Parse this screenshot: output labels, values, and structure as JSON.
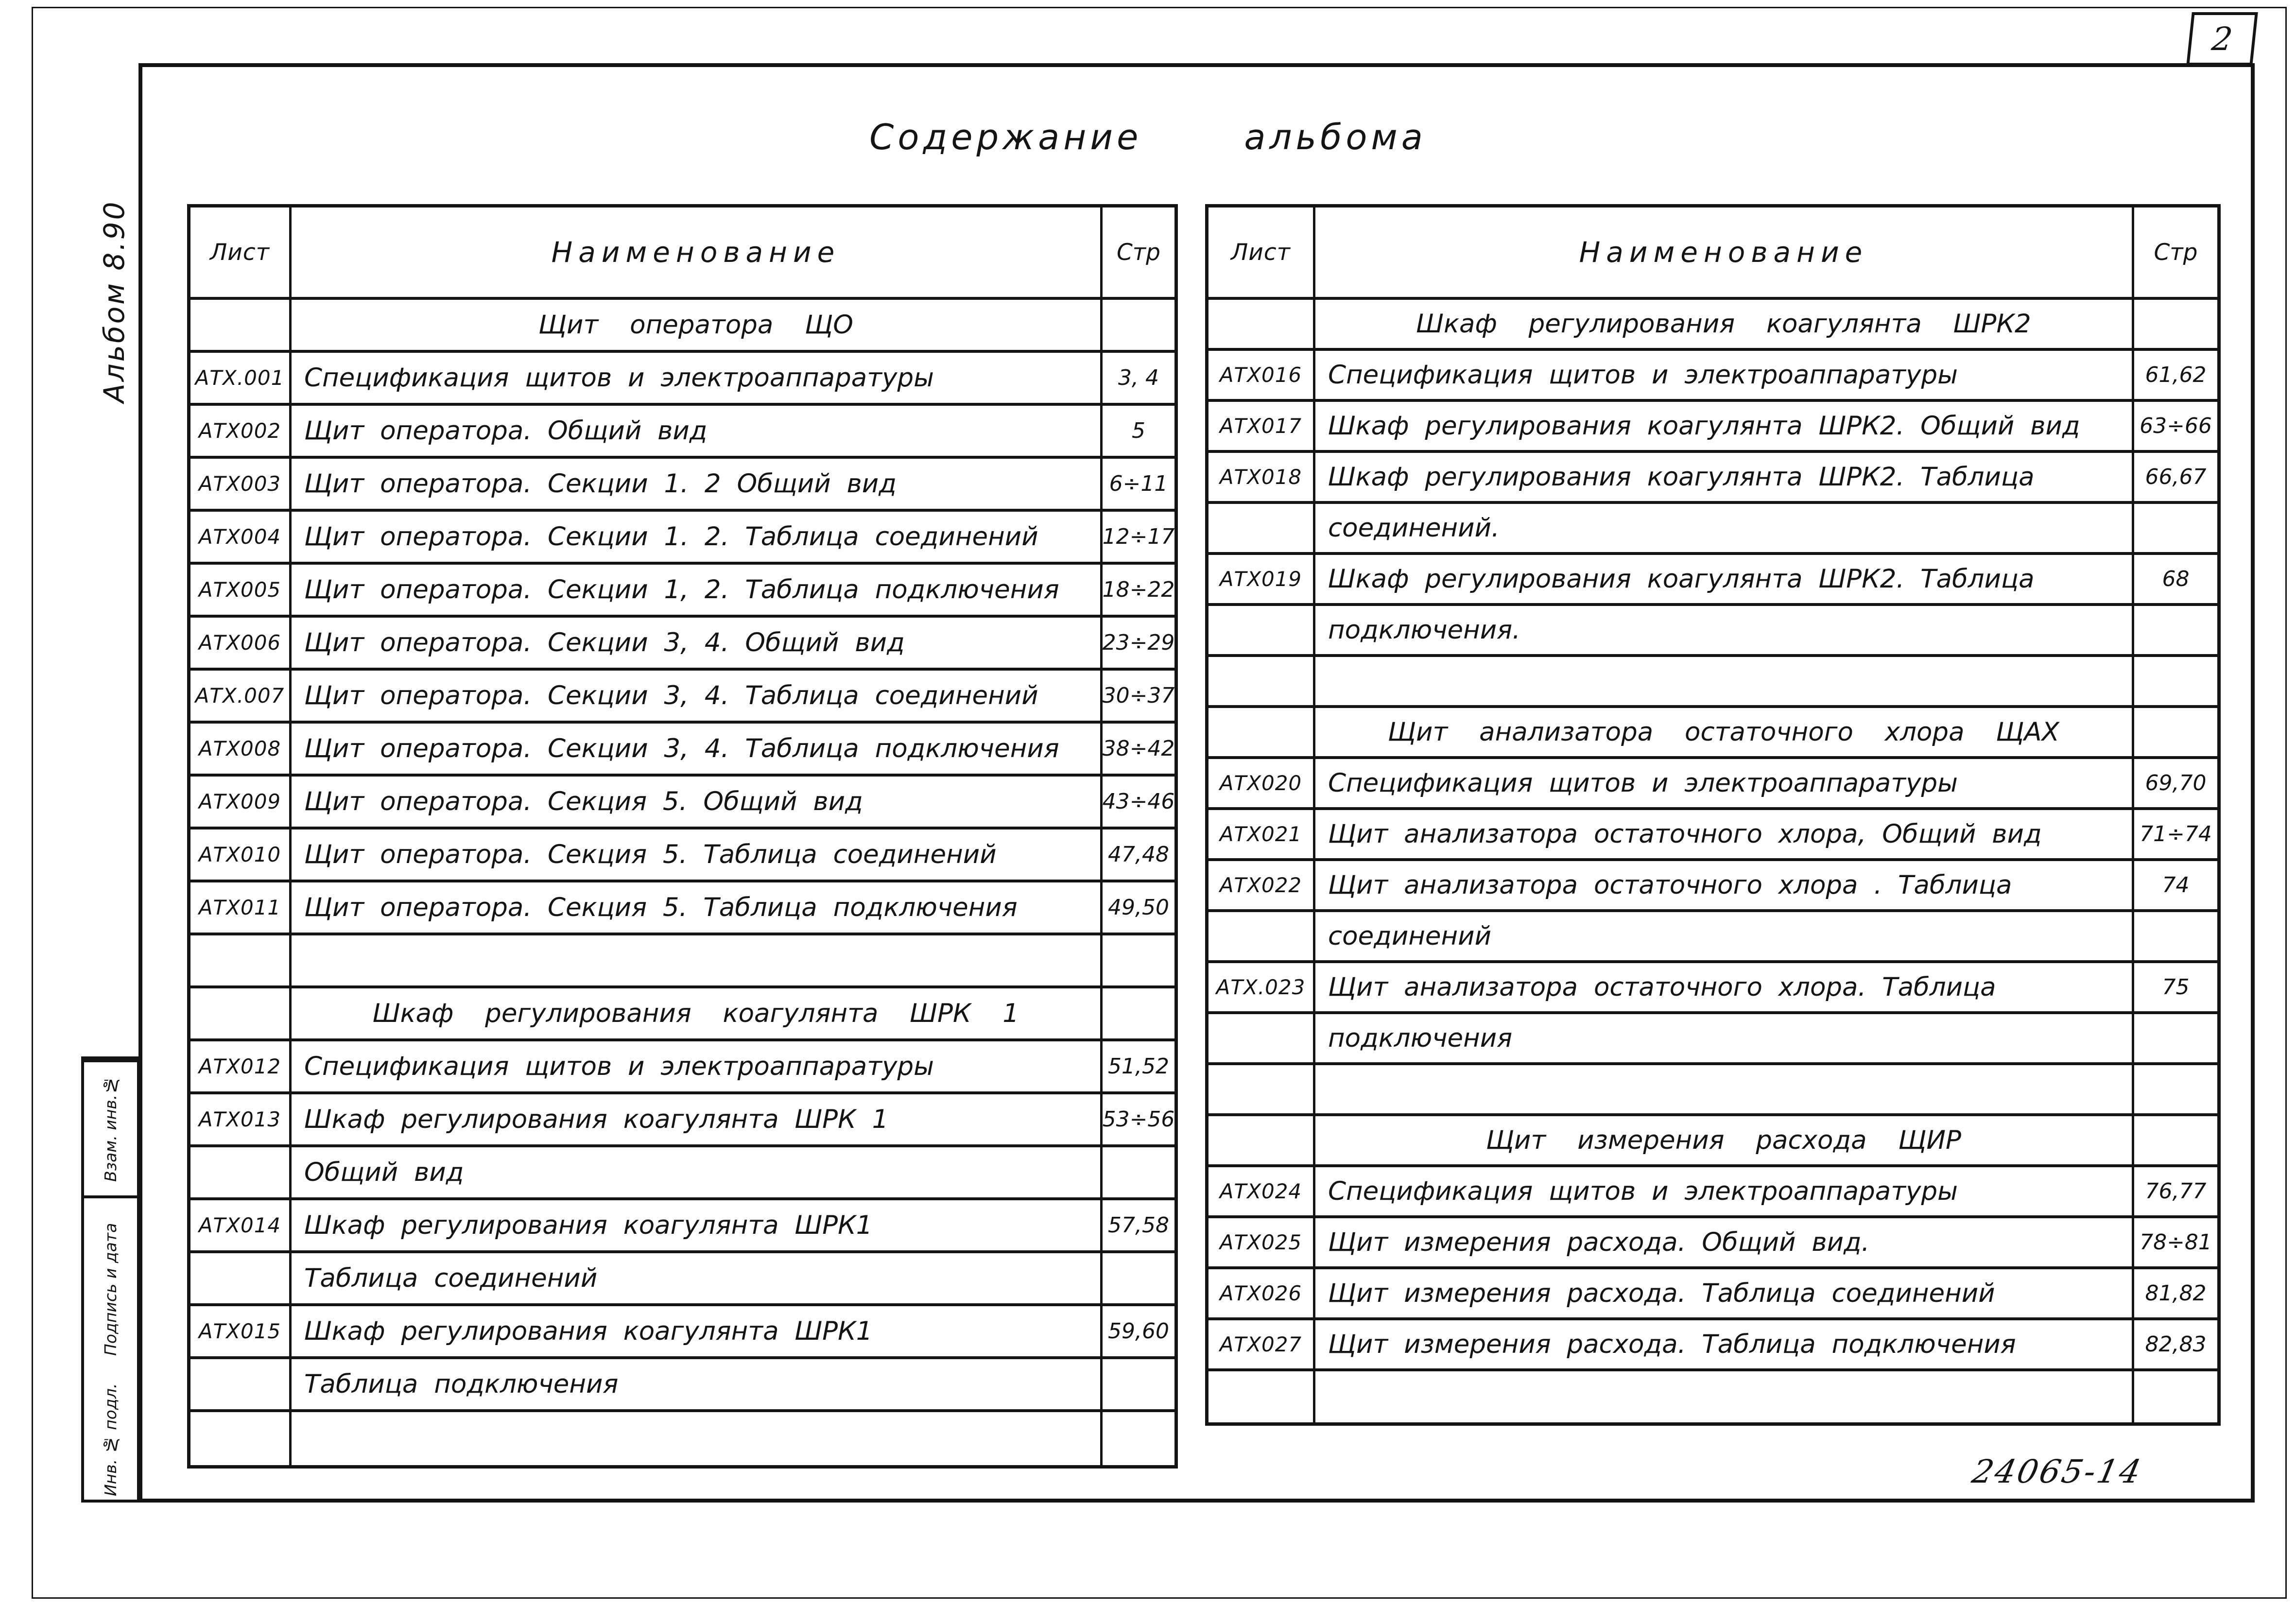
{
  "page": {
    "sheet_number": "2",
    "doc_number": "24065-14",
    "title_word1": "Содержание",
    "title_word2": "альбома",
    "margin_label": "Альбом 8.90",
    "stamp_cells": [
      "Взам. инв.№",
      "Подпись и дата",
      "Инв. № подл."
    ],
    "colors": {
      "paper": "#ffffff",
      "ink": "#141414"
    }
  },
  "tables": {
    "headers": {
      "sheet": "Лист",
      "name": "Наименование",
      "page": "Стр"
    },
    "left_rows": [
      {
        "t": "section",
        "name": "Щит оператора ЩО"
      },
      {
        "t": "item",
        "sheet": "АТХ.001",
        "name": "Спецификация щитов и электроаппаратуры",
        "page": "3, 4"
      },
      {
        "t": "item",
        "sheet": "АТХ002",
        "name": "Щит оператора. Общий вид",
        "page": "5"
      },
      {
        "t": "item",
        "sheet": "АТХ003",
        "name": "Щит оператора. Секции 1. 2  Общий вид",
        "page": "6÷11"
      },
      {
        "t": "item",
        "sheet": "АТХ004",
        "name": "Щит оператора. Секции 1. 2. Таблица соединений",
        "page": "12÷17"
      },
      {
        "t": "item",
        "sheet": "АТХ005",
        "name": "Щит оператора. Секции 1, 2. Таблица подключения",
        "page": "18÷22"
      },
      {
        "t": "item",
        "sheet": "АТХ006",
        "name": "Щит оператора. Секции 3, 4. Общий вид",
        "page": "23÷29"
      },
      {
        "t": "item",
        "sheet": "АТХ.007",
        "name": "Щит оператора. Секции 3, 4. Таблица соединений",
        "page": "30÷37"
      },
      {
        "t": "item",
        "sheet": "АТХ008",
        "name": "Щит оператора. Секции 3, 4. Таблица подключения",
        "page": "38÷42"
      },
      {
        "t": "item",
        "sheet": "АТХ009",
        "name": "Щит оператора. Секция 5. Общий вид",
        "page": "43÷46"
      },
      {
        "t": "item",
        "sheet": "АТХ010",
        "name": "Щит оператора. Секция 5. Таблица соединений",
        "page": "47,48"
      },
      {
        "t": "item",
        "sheet": "АТХ011",
        "name": "Щит оператора. Секция 5. Таблица подключения",
        "page": "49,50"
      },
      {
        "t": "empty"
      },
      {
        "t": "section",
        "name": "Шкаф регулирования коагулянта ШРК 1"
      },
      {
        "t": "item",
        "sheet": "АТХ012",
        "name": "Спецификация щитов и электроаппаратуры",
        "page": "51,52"
      },
      {
        "t": "item",
        "sheet": "АТХ013",
        "name": "Шкаф регулирования коагулянта ШРК 1",
        "page": "53÷56"
      },
      {
        "t": "cont",
        "name": "Общий вид"
      },
      {
        "t": "item",
        "sheet": "АТХ014",
        "name": "Шкаф регулирования коагулянта ШРК1",
        "page": "57,58"
      },
      {
        "t": "cont",
        "name": "Таблица соединений"
      },
      {
        "t": "item",
        "sheet": "АТХ015",
        "name": "Шкаф регулирования коагулянта ШРК1",
        "page": "59,60"
      },
      {
        "t": "cont",
        "name": "Таблица подключения"
      },
      {
        "t": "empty"
      }
    ],
    "right_rows": [
      {
        "t": "section",
        "name": "Шкаф регулирования коагулянта ШРК2"
      },
      {
        "t": "item",
        "sheet": "АТХ016",
        "name": "Спецификация щитов и электроаппаратуры",
        "page": "61,62"
      },
      {
        "t": "item",
        "sheet": "АТХ017",
        "name": "Шкаф регулирования коагулянта ШРК2. Общий вид",
        "page": "63÷66"
      },
      {
        "t": "item",
        "sheet": "АТХ018",
        "name": "Шкаф регулирования коагулянта ШРК2. Таблица",
        "page": "66,67"
      },
      {
        "t": "cont",
        "name": "соединений."
      },
      {
        "t": "item",
        "sheet": "АТХ019",
        "name": "Шкаф регулирования коагулянта ШРК2. Таблица",
        "page": "68"
      },
      {
        "t": "cont",
        "name": "подключения."
      },
      {
        "t": "empty"
      },
      {
        "t": "section",
        "name": "Щит анализатора остаточного хлора ЩАХ"
      },
      {
        "t": "item",
        "sheet": "АТХ020",
        "name": "Спецификация щитов и электроаппаратуры",
        "page": "69,70"
      },
      {
        "t": "item",
        "sheet": "АТХ021",
        "name": "Щит анализатора остаточного хлора, Общий вид",
        "page": "71÷74"
      },
      {
        "t": "item",
        "sheet": "АТХ022",
        "name": "Щит анализатора остаточного хлора . Таблица",
        "page": "74"
      },
      {
        "t": "cont",
        "name": "соединений"
      },
      {
        "t": "item",
        "sheet": "АТХ.023",
        "name": "Щит анализатора остаточного хлора. Таблица",
        "page": "75"
      },
      {
        "t": "cont",
        "name": "подключения"
      },
      {
        "t": "empty"
      },
      {
        "t": "section",
        "name": "Щит измерения расхода ЩИР"
      },
      {
        "t": "item",
        "sheet": "АТХ024",
        "name": "Спецификация щитов и электроаппаратуры",
        "page": "76,77"
      },
      {
        "t": "item",
        "sheet": "АТХ025",
        "name": "Щит измерения расхода. Общий вид.",
        "page": "78÷81"
      },
      {
        "t": "item",
        "sheet": "АТХ026",
        "name": "Щит измерения расхода. Таблица соединений",
        "page": "81,82"
      },
      {
        "t": "item",
        "sheet": "АТХ027",
        "name": "Щит измерения расхода. Таблица подключения",
        "page": "82,83"
      },
      {
        "t": "empty"
      }
    ]
  }
}
